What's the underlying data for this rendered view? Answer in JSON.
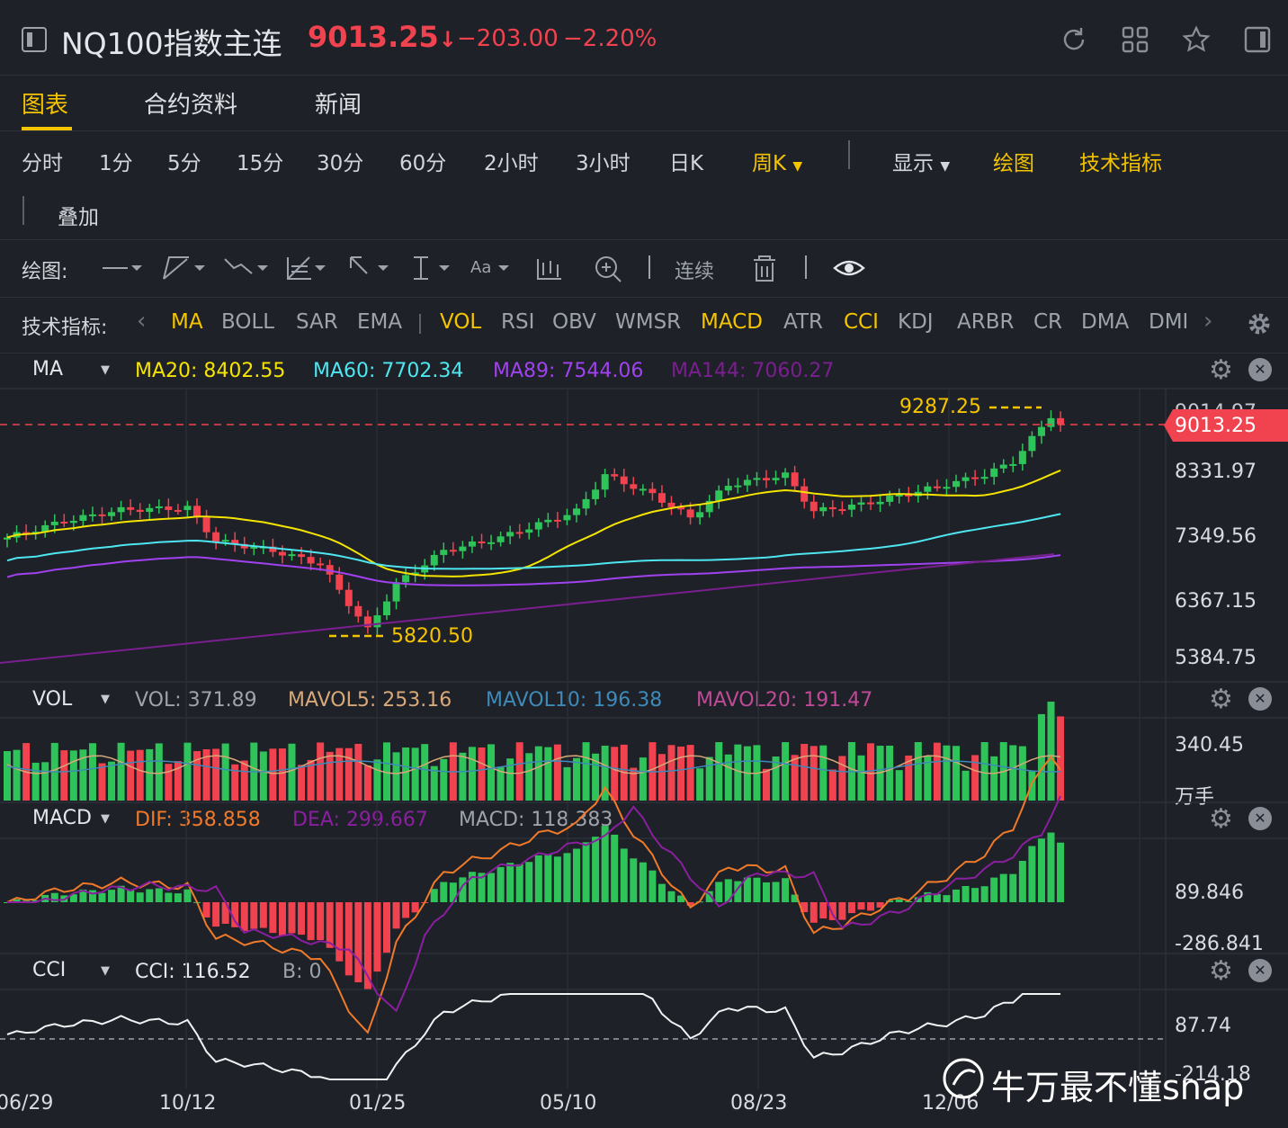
{
  "header": {
    "title": "NQ100指数主连",
    "price": "9013.25",
    "arrow": "↓",
    "change": "−203.00",
    "change_pct": "−2.20%",
    "down_color": "#f0424f"
  },
  "tabs": [
    {
      "label": "图表",
      "active": true
    },
    {
      "label": "合约资料"
    },
    {
      "label": "新闻"
    }
  ],
  "periods": [
    "分时",
    "1分",
    "5分",
    "15分",
    "30分",
    "60分",
    "2小时",
    "3小时",
    "日K",
    "周K"
  ],
  "period_active": "周K",
  "toolbar": {
    "display": "显示",
    "draw": "绘图",
    "tech": "技术指标",
    "overlay": "叠加"
  },
  "draw_tools": {
    "label": "绘图:",
    "text_tool": "Aa",
    "continuous": "连续"
  },
  "indicators": {
    "label": "技术指标:",
    "items": [
      "MA",
      "BOLL",
      "SAR",
      "EMA",
      "VOL",
      "RSI",
      "OBV",
      "WMSR",
      "MACD",
      "ATR",
      "CCI",
      "KDJ",
      "ARBR",
      "CR",
      "DMA",
      "DMI"
    ],
    "active": [
      "MA",
      "VOL",
      "MACD",
      "CCI"
    ]
  },
  "panes": {
    "ma": {
      "name": "MA",
      "values": [
        {
          "t": "MA20: 8402.55",
          "c": "#f5e400"
        },
        {
          "t": "MA60: 7702.34",
          "c": "#4ee6f0"
        },
        {
          "t": "MA89: 7544.06",
          "c": "#a042f0"
        },
        {
          "t": "MA144: 7060.27",
          "c": "#7a1f8f"
        }
      ],
      "axis": [
        "9014.97",
        "8331.97",
        "7349.56",
        "6367.15",
        "5384.75"
      ],
      "high": "9287.25",
      "low": "5820.50",
      "last": "9013.25"
    },
    "vol": {
      "name": "VOL",
      "values": [
        {
          "t": "VOL: 371.89",
          "c": "#9ea3ab"
        },
        {
          "t": "MAVOL5: 253.16",
          "c": "#d8a878"
        },
        {
          "t": "MAVOL10: 196.38",
          "c": "#3e8ab8"
        },
        {
          "t": "MAVOL20: 191.47",
          "c": "#c04a98"
        }
      ],
      "axis": [
        "340.45",
        "万手"
      ]
    },
    "macd": {
      "name": "MACD",
      "values": [
        {
          "t": "DIF: 358.858",
          "c": "#f07a2a"
        },
        {
          "t": "DEA: 299.667",
          "c": "#8a1fa0"
        },
        {
          "t": "MACD: 118.383",
          "c": "#9ea3ab"
        }
      ],
      "axis": [
        "89.846",
        "-286.841"
      ]
    },
    "cci": {
      "name": "CCI",
      "values": [
        {
          "t": "CCI: 116.52",
          "c": "#e3e6ea"
        },
        {
          "t": "B: 0",
          "c": "#9ea3ab"
        }
      ],
      "axis": [
        "87.74",
        "-214.18"
      ]
    }
  },
  "x_dates": [
    "06/29",
    "10/12",
    "01/25",
    "05/10",
    "08/23",
    "12/06"
  ],
  "watermark": "牛万最不懂snap",
  "colors": {
    "up": "#2ec45a",
    "down": "#f0424f",
    "accent": "#f5c400"
  }
}
